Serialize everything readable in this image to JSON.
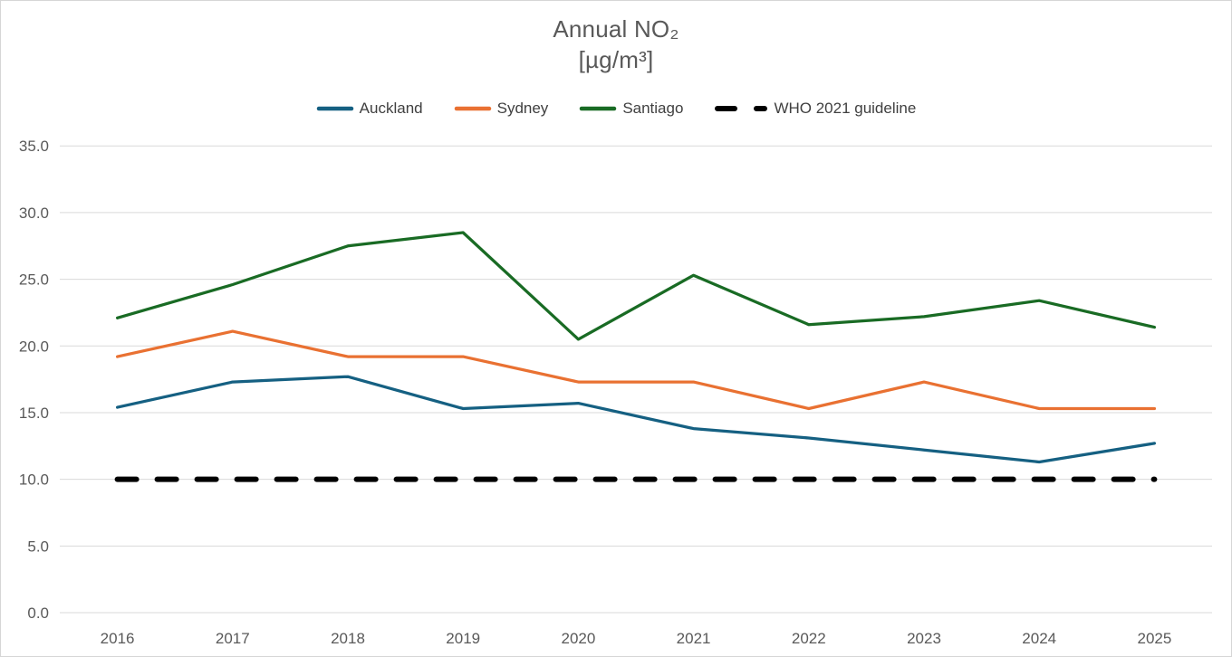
{
  "title": {
    "line1": "Annual NO₂",
    "line2": "[µg/m³]"
  },
  "chart_data": {
    "type": "line",
    "title": "Annual NO₂",
    "subtitle": "[µg/m³]",
    "categories": [
      "2016",
      "2017",
      "2018",
      "2019",
      "2020",
      "2021",
      "2022",
      "2023",
      "2024",
      "2025"
    ],
    "series": [
      {
        "name": "Auckland",
        "color": "#156082",
        "dashed": false,
        "values": [
          15.4,
          17.3,
          17.7,
          15.3,
          15.7,
          13.8,
          13.1,
          12.2,
          11.3,
          12.7
        ]
      },
      {
        "name": "Sydney",
        "color": "#E97132",
        "dashed": false,
        "values": [
          19.2,
          21.1,
          19.2,
          19.2,
          17.3,
          17.3,
          15.3,
          17.3,
          15.3,
          15.3
        ]
      },
      {
        "name": "Santiago",
        "color": "#196B24",
        "dashed": false,
        "values": [
          22.1,
          24.6,
          27.5,
          28.5,
          20.5,
          25.3,
          21.6,
          22.2,
          23.4,
          21.4
        ]
      },
      {
        "name": "WHO 2021 guideline",
        "color": "#000000",
        "dashed": true,
        "values": [
          10.0,
          10.0,
          10.0,
          10.0,
          10.0,
          10.0,
          10.0,
          10.0,
          10.0,
          10.0
        ]
      }
    ],
    "ylim": [
      0,
      35
    ],
    "ytick_step": 5,
    "y_tick_labels": [
      "0.0",
      "5.0",
      "10.0",
      "15.0",
      "20.0",
      "25.0",
      "30.0",
      "35.0"
    ],
    "grid": true,
    "gridline_color": "#d9d9d9",
    "axis_label_color": "#595959",
    "legend_position": "top"
  }
}
